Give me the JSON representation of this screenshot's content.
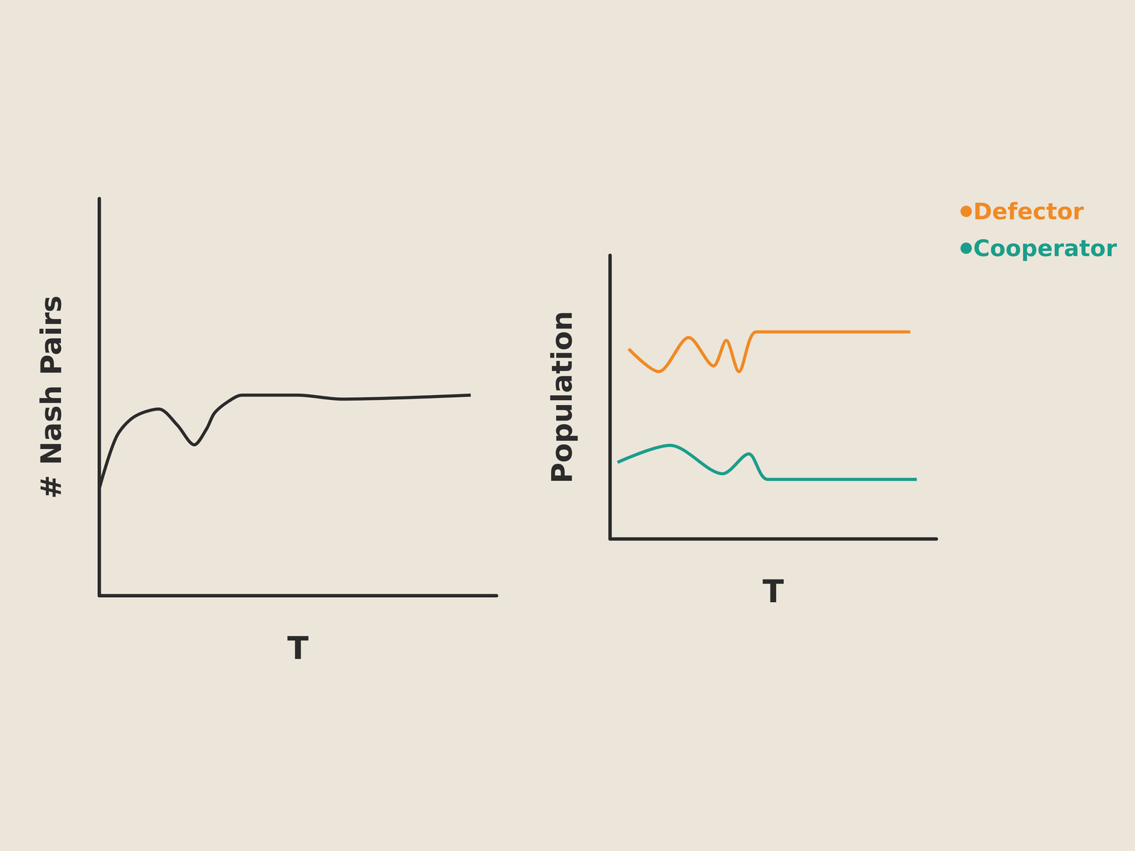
{
  "chart_data": [
    {
      "type": "line",
      "x_label": "T",
      "y_label": "# Nash Pairs",
      "xlim": [
        0,
        100
      ],
      "ylim": [
        0,
        10
      ],
      "tick_labels": false,
      "color": "#2b2b2b",
      "x": [
        0,
        4.3,
        8.7,
        15,
        19.6,
        23.9,
        27,
        29,
        32.6,
        35.9,
        50,
        61,
        93.5
      ],
      "values": [
        2.7,
        4.0,
        4.5,
        4.7,
        4.3,
        3.8,
        4.2,
        4.6,
        4.9,
        5.05,
        5.05,
        4.95,
        5.05
      ]
    },
    {
      "type": "line",
      "x_label": "T",
      "y_label": "Population",
      "xlim": [
        0,
        100
      ],
      "ylim": [
        0,
        10
      ],
      "tick_labels": false,
      "legend": "right",
      "series": [
        {
          "name": "Defector",
          "color": "#f08a24",
          "x": [
            5.7,
            14.9,
            24.1,
            31.7,
            35.6,
            39.5,
            44.8,
            57.5,
            92
          ],
          "values": [
            6.7,
            5.9,
            7.1,
            6.1,
            7.0,
            5.9,
            7.3,
            7.3,
            7.3
          ]
        },
        {
          "name": "Cooperator",
          "color": "#1a9e8a",
          "x": [
            2.3,
            18.4,
            34.5,
            42.5,
            48.3,
            94
          ],
          "values": [
            2.7,
            3.3,
            2.3,
            3.0,
            2.1,
            2.1
          ]
        }
      ]
    }
  ]
}
